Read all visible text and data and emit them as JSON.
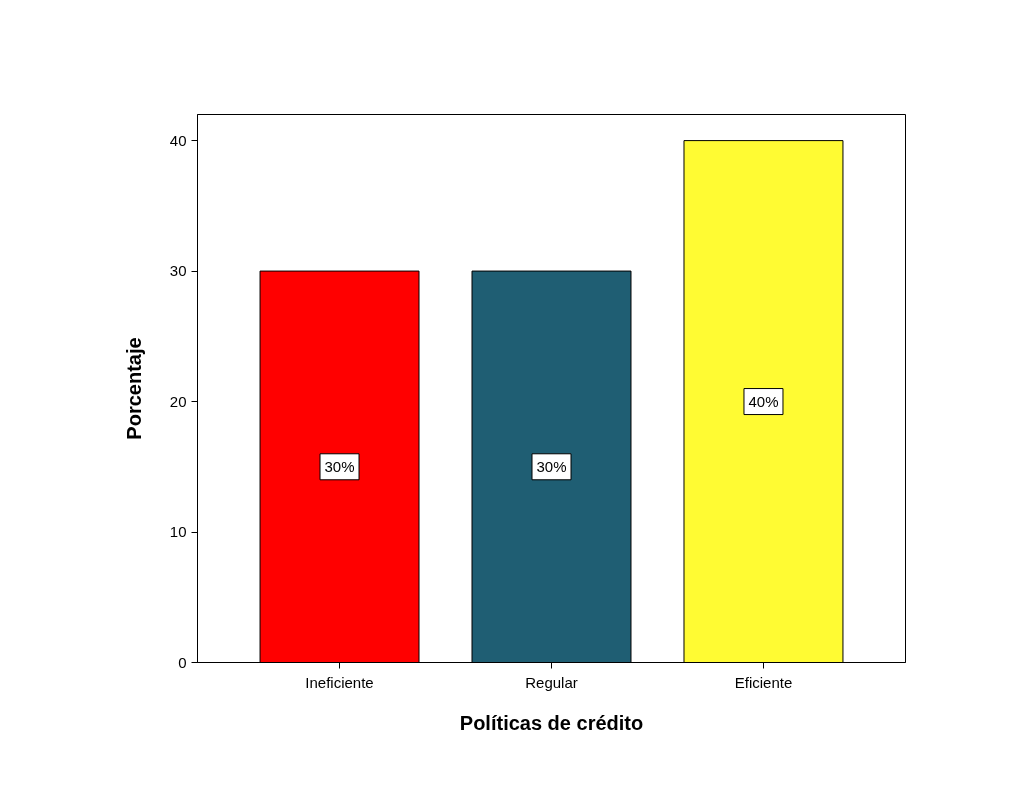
{
  "chart_data": {
    "type": "bar",
    "xlabel": "Políticas de crédito",
    "ylabel": "Porcentaje",
    "categories": [
      "Ineficiente",
      "Regular",
      "Eficiente"
    ],
    "values": [
      30,
      30,
      40
    ],
    "colors": [
      "#ff0000",
      "#1f5e73",
      "#fffb33"
    ],
    "value_labels": [
      "30%",
      "30%",
      "40%"
    ],
    "ylim": [
      0,
      42
    ],
    "yticks": [
      0,
      10,
      20,
      30,
      40
    ],
    "grid": false
  }
}
